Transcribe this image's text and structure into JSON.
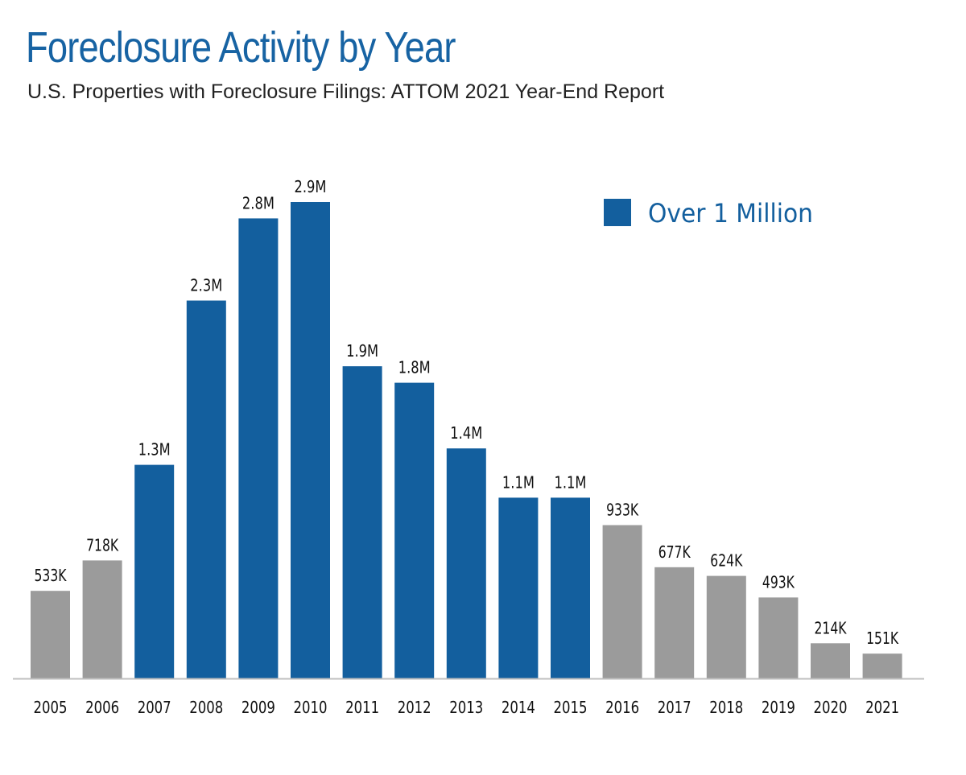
{
  "chart_data": {
    "type": "bar",
    "title": "Foreclosure Activity by Year",
    "subtitle": "U.S. Properties with Foreclosure Filings: ATTOM 2021 Year-End Report",
    "xlabel": "",
    "ylabel": "",
    "ylim": [
      0,
      2900000
    ],
    "grid": false,
    "categories": [
      "2005",
      "2006",
      "2007",
      "2008",
      "2009",
      "2010",
      "2011",
      "2012",
      "2013",
      "2014",
      "2015",
      "2016",
      "2017",
      "2018",
      "2019",
      "2020",
      "2021"
    ],
    "values": [
      533000,
      718000,
      1300000,
      2300000,
      2800000,
      2900000,
      1900000,
      1800000,
      1400000,
      1100000,
      1100000,
      933000,
      677000,
      624000,
      493000,
      214000,
      151000
    ],
    "labels": [
      "533K",
      "718K",
      "1.3M",
      "2.3M",
      "2.8M",
      "2.9M",
      "1.9M",
      "1.8M",
      "1.4M",
      "1.1M",
      "1.1M",
      "933K",
      "677K",
      "624K",
      "493K",
      "214K",
      "151K"
    ],
    "highlight_threshold": 1000000,
    "legend": {
      "label": "Over 1 Million",
      "position": "top-right"
    },
    "colors": {
      "highlight": "#135f9e",
      "normal": "#9b9b9b",
      "axis": "#bfbfbf",
      "title": "#1763a3"
    }
  }
}
